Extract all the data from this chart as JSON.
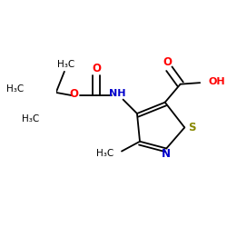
{
  "bg_color": "#ffffff",
  "atom_colors": {
    "C": "#000000",
    "N": "#0000cc",
    "O": "#ff0000",
    "S": "#888800",
    "H": "#000000"
  },
  "bond_color": "#000000",
  "bond_lw": 1.3,
  "dbo": 0.025,
  "xlim": [
    -0.05,
    1.05
  ],
  "ylim": [
    -0.55,
    0.55
  ]
}
